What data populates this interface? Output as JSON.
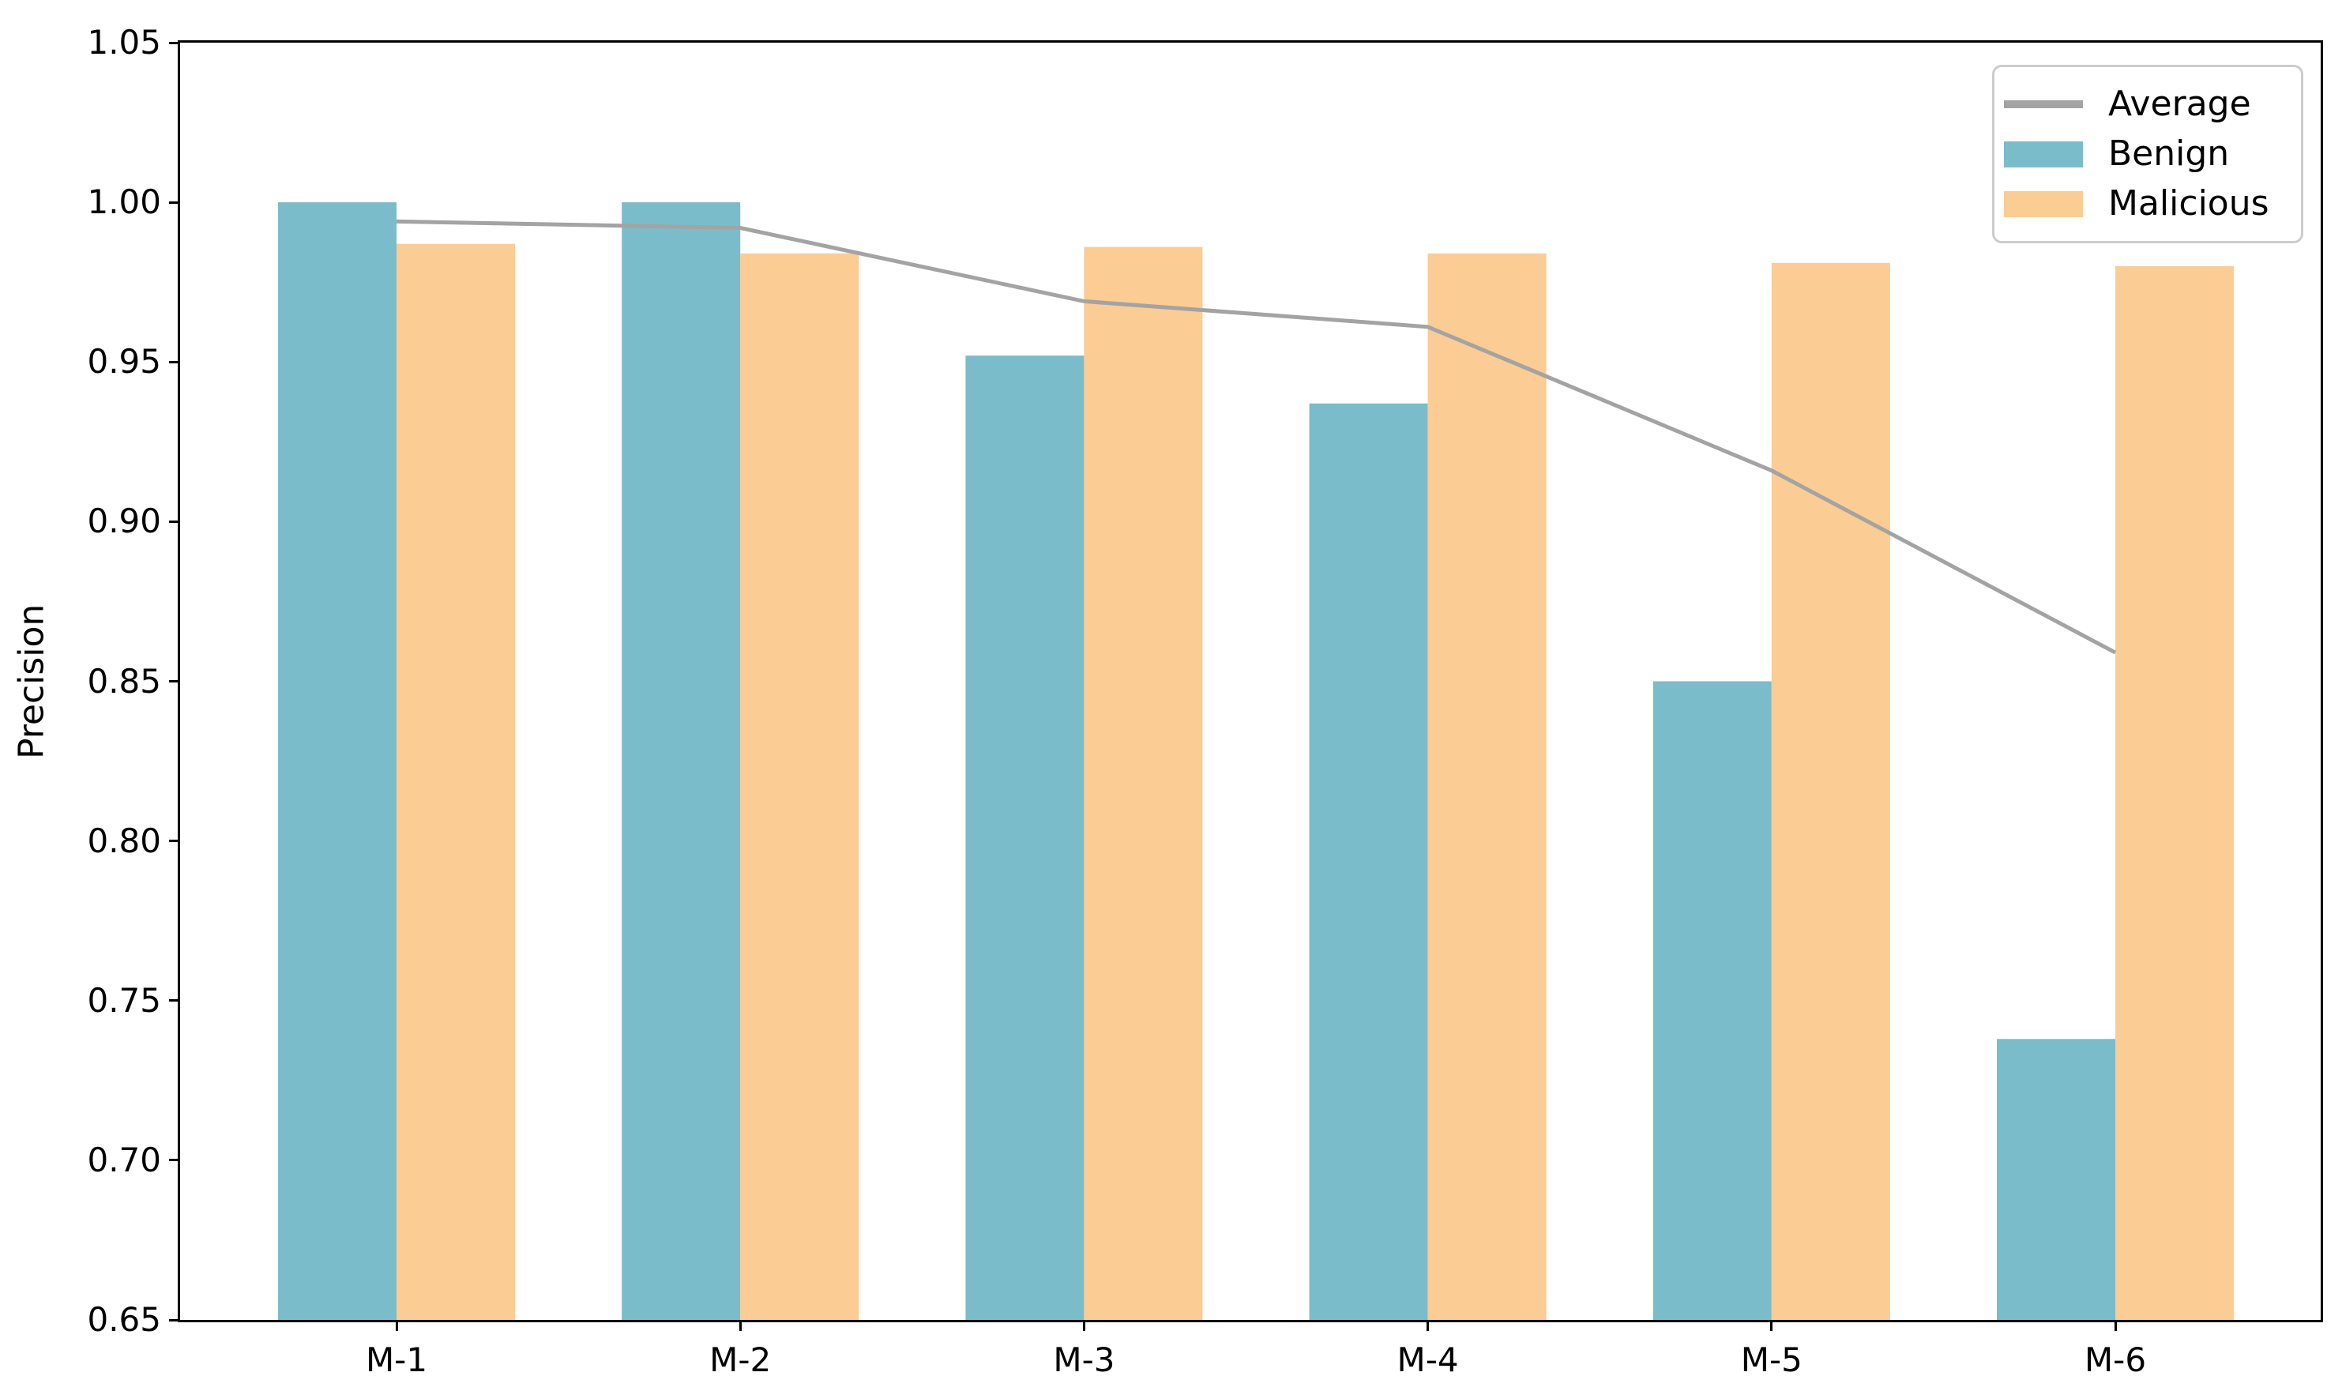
{
  "chart_data": {
    "type": "bar",
    "title": "",
    "xlabel": "",
    "ylabel": "Precision",
    "categories": [
      "M-1",
      "M-2",
      "M-3",
      "M-4",
      "M-5",
      "M-6"
    ],
    "series": [
      {
        "name": "Benign",
        "type": "bar",
        "color": "#7bbccb",
        "values": [
          1.0,
          1.0,
          0.952,
          0.937,
          0.85,
          0.738
        ]
      },
      {
        "name": "Malicious",
        "type": "bar",
        "color": "#fbcc93",
        "values": [
          0.987,
          0.984,
          0.986,
          0.984,
          0.981,
          0.98
        ]
      },
      {
        "name": "Average",
        "type": "line",
        "color": "#a3a3a3",
        "values": [
          0.994,
          0.992,
          0.969,
          0.961,
          0.916,
          0.859
        ]
      }
    ],
    "ylim": [
      0.65,
      1.05
    ],
    "yticks": [
      1.05,
      1.0,
      0.95,
      0.9,
      0.85,
      0.8,
      0.75,
      0.7,
      0.65
    ],
    "ytick_labels": [
      "1.05",
      "1.00",
      "0.95",
      "0.90",
      "0.85",
      "0.80",
      "0.75",
      "0.70",
      "0.65"
    ],
    "grid": false,
    "legend_position": "upper right"
  },
  "legend": {
    "items": [
      {
        "label": "Average",
        "swatch": "line",
        "color": "#a3a3a3"
      },
      {
        "label": "Benign",
        "swatch": "rect",
        "color": "#7bbccb"
      },
      {
        "label": "Malicious",
        "swatch": "rect",
        "color": "#fbcc93"
      }
    ]
  }
}
